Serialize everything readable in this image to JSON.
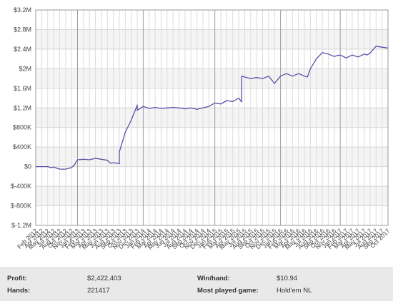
{
  "chart_data": {
    "type": "line",
    "y_ticks": [
      "$3.2M",
      "$2.8M",
      "$2.4M",
      "$2M",
      "$1.6M",
      "$1.2M",
      "$800K",
      "$400K",
      "$0",
      "$-400K",
      "$-800K",
      "$-1.2M"
    ],
    "ylim": [
      -1200000,
      3200000
    ],
    "x_ticks": [
      "Feb 2012",
      "Apr 2012",
      "May 2012",
      "Jul 2012",
      "Aug 2012",
      "Oct 2012",
      "Nov 2012",
      "Jan 2013",
      "Feb 2013",
      "Mar 2013",
      "Apr 2013",
      "May 2013",
      "Jun 2013",
      "Aug 2013",
      "Sep 2013",
      "Oct 2013",
      "Nov 2013",
      "Dec 2013",
      "Jan 2014",
      "Feb 2014",
      "Mar 2014",
      "Apr 2014",
      "May 2014",
      "Jun 2014",
      "Jul 2014",
      "Aug 2014",
      "Sep 2014",
      "Oct 2014",
      "Nov 2014",
      "Dec 2014",
      "Jan 2015",
      "Feb 2015",
      "Mar 2015",
      "Apr 2015",
      "May 2015",
      "Jul 2015",
      "Aug 2015",
      "Sep 2015",
      "Oct 2015",
      "Nov 2015",
      "Dec 2015",
      "Jan 2016",
      "Feb 2016",
      "Mar 2016",
      "Apr 2016",
      "May 2016",
      "Jul 2016",
      "Aug 2016",
      "Sep 2016",
      "Oct 2016",
      "Nov 2016",
      "Jan 2017",
      "Feb 2017",
      "Mar 2017",
      "Apr 2017",
      "May 2017",
      "Jul 2017",
      "Aug 2017",
      "Sep 2017",
      "Oct 2017"
    ],
    "major_grid_ticks": [
      "Jan 2013",
      "Jan 2014",
      "Jan 2015",
      "Jan 2016",
      "Jan 2017"
    ],
    "grid": true,
    "series": [
      {
        "color": "#5b4ea8",
        "points": [
          [
            "Feb 2012",
            0
          ],
          [
            "May 2012",
            0
          ],
          [
            "Jun 2012",
            -20000
          ],
          [
            "Jul 2012",
            -10000
          ],
          [
            "Aug 2012",
            -50000
          ],
          [
            "Oct 2012",
            -50000
          ],
          [
            "Nov 2012",
            -20000
          ],
          [
            "Dec 2012",
            40000
          ],
          [
            "Jan 2013",
            140000
          ],
          [
            "Feb 2013",
            150000
          ],
          [
            "Mar 2013",
            140000
          ],
          [
            "Apr 2013",
            170000
          ],
          [
            "May 2013",
            150000
          ],
          [
            "Jun 2013",
            130000
          ],
          [
            "Jul 2013",
            70000
          ],
          [
            "Aug 2013",
            80000
          ],
          [
            "Sep 2013",
            60000
          ],
          [
            "Sep 2013",
            300000
          ],
          [
            "Oct 2013",
            700000
          ],
          [
            "Nov 2013",
            950000
          ],
          [
            "Dec 2013",
            1260000
          ],
          [
            "Dec 2013",
            1150000
          ],
          [
            "Jan 2014",
            1230000
          ],
          [
            "Feb 2014",
            1190000
          ],
          [
            "Mar 2014",
            1210000
          ],
          [
            "Apr 2014",
            1190000
          ],
          [
            "May 2014",
            1200000
          ],
          [
            "Jun 2014",
            1210000
          ],
          [
            "Jul 2014",
            1200000
          ],
          [
            "Aug 2014",
            1180000
          ],
          [
            "Sep 2014",
            1200000
          ],
          [
            "Oct 2014",
            1170000
          ],
          [
            "Nov 2014",
            1200000
          ],
          [
            "Dec 2014",
            1230000
          ],
          [
            "Jan 2015",
            1300000
          ],
          [
            "Feb 2015",
            1280000
          ],
          [
            "Mar 2015",
            1350000
          ],
          [
            "Apr 2015",
            1330000
          ],
          [
            "May 2015",
            1400000
          ],
          [
            "Jun 2015",
            1320000
          ],
          [
            "Jun 2015",
            1850000
          ],
          [
            "Jul 2015",
            1830000
          ],
          [
            "Aug 2015",
            1800000
          ],
          [
            "Sep 2015",
            1820000
          ],
          [
            "Oct 2015",
            1800000
          ],
          [
            "Nov 2015",
            1850000
          ],
          [
            "Dec 2015",
            1700000
          ],
          [
            "Jan 2016",
            1850000
          ],
          [
            "Feb 2016",
            1900000
          ],
          [
            "Mar 2016",
            1850000
          ],
          [
            "Apr 2016",
            1900000
          ],
          [
            "May 2016",
            1850000
          ],
          [
            "Jun 2016",
            1830000
          ],
          [
            "Jul 2016",
            2000000
          ],
          [
            "Aug 2016",
            2200000
          ],
          [
            "Sep 2016",
            2330000
          ],
          [
            "Oct 2016",
            2300000
          ],
          [
            "Nov 2016",
            2250000
          ],
          [
            "Dec 2016",
            2270000
          ],
          [
            "Jan 2017",
            2280000
          ],
          [
            "Feb 2017",
            2220000
          ],
          [
            "Mar 2017",
            2280000
          ],
          [
            "Apr 2017",
            2240000
          ],
          [
            "May 2017",
            2300000
          ],
          [
            "Jun 2017",
            2280000
          ],
          [
            "Jul 2017",
            2320000
          ],
          [
            "Aug 2017",
            2460000
          ],
          [
            "Sep 2017",
            2440000
          ],
          [
            "Oct 2017",
            2422403
          ]
        ]
      }
    ]
  },
  "stats": {
    "profit_label": "Profit:",
    "profit_value": "$2,422,403",
    "hands_label": "Hands:",
    "hands_value": "221417",
    "winhand_label": "Win/hand:",
    "winhand_value": "$10.94",
    "game_label": "Most played game:",
    "game_value": "Hold'em NL"
  }
}
